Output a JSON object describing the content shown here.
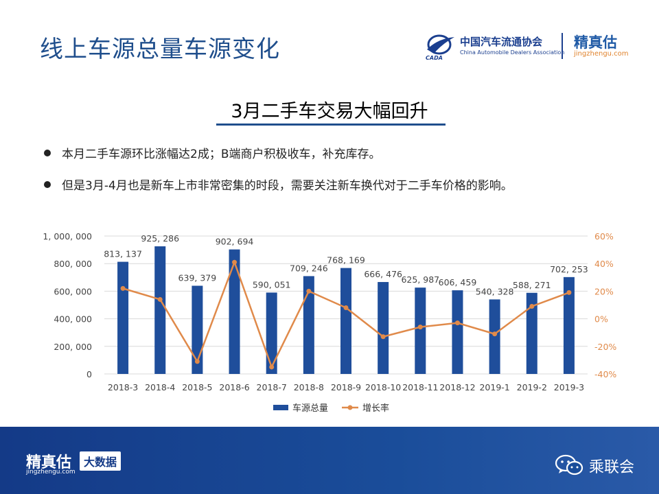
{
  "header": {
    "title": "线上车源总量车源变化",
    "cada_name_cn": "中国汽车流通协会",
    "cada_name_en": "China Automobile Dealers Association",
    "cada_abbrev": "CADA",
    "jzg_name_cn": "精真估",
    "jzg_name_en": "jingzhengu.com"
  },
  "subtitle": "3月二手车交易大幅回升",
  "bullets": [
    "本月二手车源环比涨幅达2成；B端商户积极收车，补充库存。",
    "但是3月-4月也是新车上市非常密集的时段，需要关注新车换代对于二手车价格的影响。"
  ],
  "chart_data": {
    "type": "bar",
    "categories": [
      "2018-3",
      "2018-4",
      "2018-5",
      "2018-6",
      "2018-7",
      "2018-8",
      "2018-9",
      "2018-10",
      "2018-11",
      "2018-12",
      "2019-1",
      "2019-2",
      "2019-3"
    ],
    "series": [
      {
        "name": "车源总量",
        "type": "bar",
        "axis": "left",
        "color": "#1f4e9b",
        "values": [
          813137,
          925286,
          639379,
          902694,
          590051,
          709246,
          768169,
          666476,
          625987,
          606459,
          540328,
          588271,
          702253
        ],
        "labels": [
          "813, 137",
          "925, 286",
          "639, 379",
          "902, 694",
          "590, 051",
          "709, 246",
          "768, 169",
          "666, 476",
          "625, 987",
          "606, 459",
          "540, 328",
          "588, 271",
          "702, 253"
        ]
      },
      {
        "name": "增长率",
        "type": "line",
        "axis": "right",
        "color": "#e08a4a",
        "values": [
          22,
          14,
          -31,
          41,
          -35,
          20,
          8,
          -13,
          -6,
          -3,
          -11,
          9,
          19
        ]
      }
    ],
    "y_left": {
      "ylim": [
        0,
        1000000
      ],
      "ticks": [
        "0",
        "200, 000",
        "400, 000",
        "600, 000",
        "800, 000",
        "1, 000, 000"
      ]
    },
    "y_right": {
      "ylim": [
        -40,
        60
      ],
      "ticks": [
        "-40%",
        "-20%",
        "0%",
        "20%",
        "40%",
        "60%"
      ]
    },
    "grid": true,
    "legend": "bottom"
  },
  "footer": {
    "jzg_name_cn": "精真估",
    "jzg_name_en": "jingzhengu.com",
    "badge": "大数据",
    "brand": "乘联会",
    "brand_icon": "wechat-icon"
  }
}
